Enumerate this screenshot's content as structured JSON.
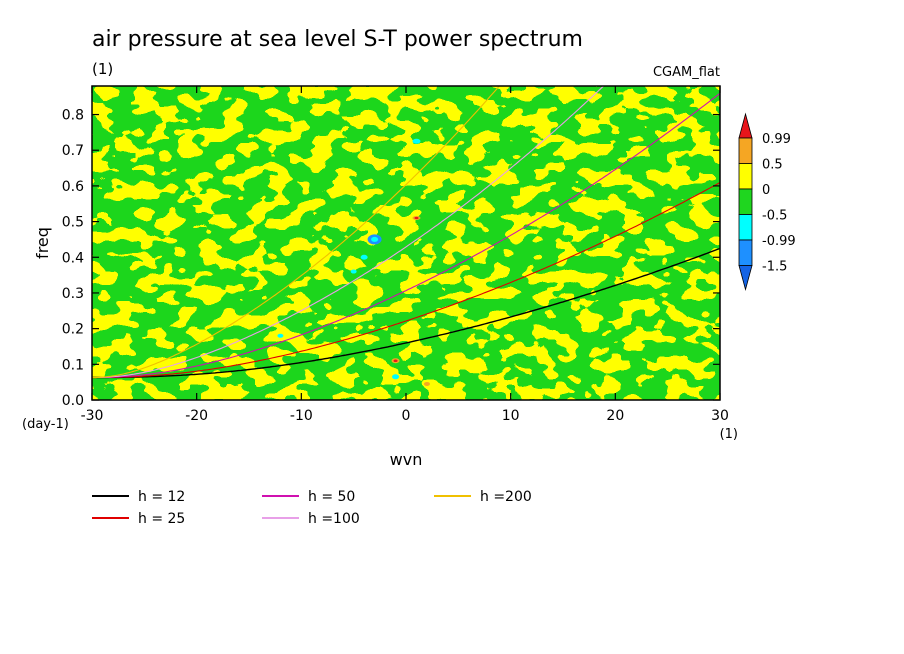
{
  "chart_data": {
    "type": "heatmap",
    "title": "air pressure at sea level S-T power spectrum",
    "units_label": "(1)",
    "model_label": "CGAM_flat",
    "xlabel": "wvn",
    "x_unit_label": "(1)",
    "ylabel": "freq",
    "y_unit_label": "(day-1)",
    "xlim": [
      -30,
      30
    ],
    "ylim": [
      0,
      0.88
    ],
    "x_ticks": [
      -30,
      -20,
      -10,
      0,
      10,
      20,
      30
    ],
    "x_tick_labels": [
      "-30",
      "-20",
      "-10",
      "0",
      "10",
      "20",
      "30"
    ],
    "y_ticks": [
      0,
      0.1,
      0.2,
      0.3,
      0.4,
      0.5,
      0.6,
      0.7,
      0.8
    ],
    "y_tick_labels": [
      "0.0",
      "0.1",
      "0.2",
      "0.3",
      "0.4",
      "0.5",
      "0.6",
      "0.7",
      "0.8"
    ],
    "colorbar": {
      "levels": [
        "0.99",
        "0.5",
        "0",
        "-0.5",
        "-0.99",
        "-1.5"
      ],
      "colors": [
        "#e8151b",
        "#f5a623",
        "#ffff00",
        "#1fd61f",
        "#00ffff",
        "#1e90ff",
        "#1464e6"
      ]
    },
    "dispersion_curves": [
      {
        "name": "h = 12",
        "h": 12,
        "color": "#000000"
      },
      {
        "name": "h = 25",
        "h": 25,
        "color": "#e00000"
      },
      {
        "name": "h = 50",
        "h": 50,
        "color": "#d010b0"
      },
      {
        "name": "h =100",
        "h": 100,
        "color": "#e8a0e8"
      },
      {
        "name": "h =200",
        "h": 200,
        "color": "#f0c000"
      }
    ],
    "grid": false,
    "legend_position": "bottom-left"
  }
}
